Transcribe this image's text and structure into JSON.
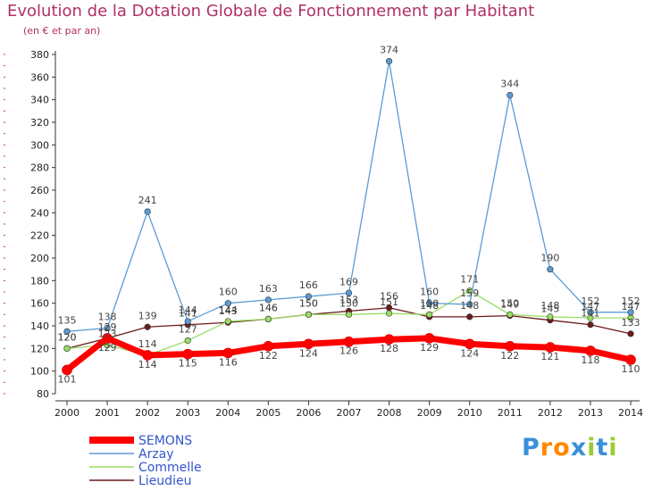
{
  "title": "Evolution de la Dotation Globale de Fonctionnement par Habitant",
  "subtitle": "(en € et par an)",
  "logo": "Proxiti",
  "chart_data": {
    "type": "line",
    "title": "Evolution de la Dotation Globale de Fonctionnement par Habitant",
    "subtitle": "(en € et par an)",
    "xlabel": "",
    "ylabel": "",
    "ylim": [
      80,
      380
    ],
    "yticks": [
      80,
      100,
      120,
      140,
      160,
      180,
      200,
      220,
      240,
      260,
      280,
      300,
      320,
      340,
      360,
      380
    ],
    "grid": false,
    "legend": "bottom-left",
    "categories": [
      "2000",
      "2001",
      "2002",
      "2003",
      "2004",
      "2005",
      "2006",
      "2007",
      "2008",
      "2009",
      "2010",
      "2011",
      "2012",
      "2013",
      "2014"
    ],
    "series": [
      {
        "name": "SEMONS",
        "color": "#ff0000",
        "values": [
          101,
          129,
          114,
          115,
          116,
          122,
          124,
          126,
          128,
          129,
          124,
          122,
          121,
          118,
          110
        ]
      },
      {
        "name": "Arzay",
        "color": "#5b9bd5",
        "values": [
          135,
          138,
          241,
          144,
          160,
          163,
          166,
          169,
          374,
          160,
          159,
          344,
          190,
          152,
          152
        ]
      },
      {
        "name": "Commelle",
        "color": "#99dd66",
        "values": [
          120,
          123,
          114,
          127,
          144,
          146,
          150,
          150,
          151,
          150,
          171,
          150,
          148,
          147,
          147
        ]
      },
      {
        "name": "Lieudieu",
        "color": "#6b1a1a",
        "values": [
          120,
          129,
          139,
          141,
          143,
          146,
          150,
          153,
          156,
          148,
          148,
          149,
          145,
          141,
          133
        ]
      }
    ]
  }
}
